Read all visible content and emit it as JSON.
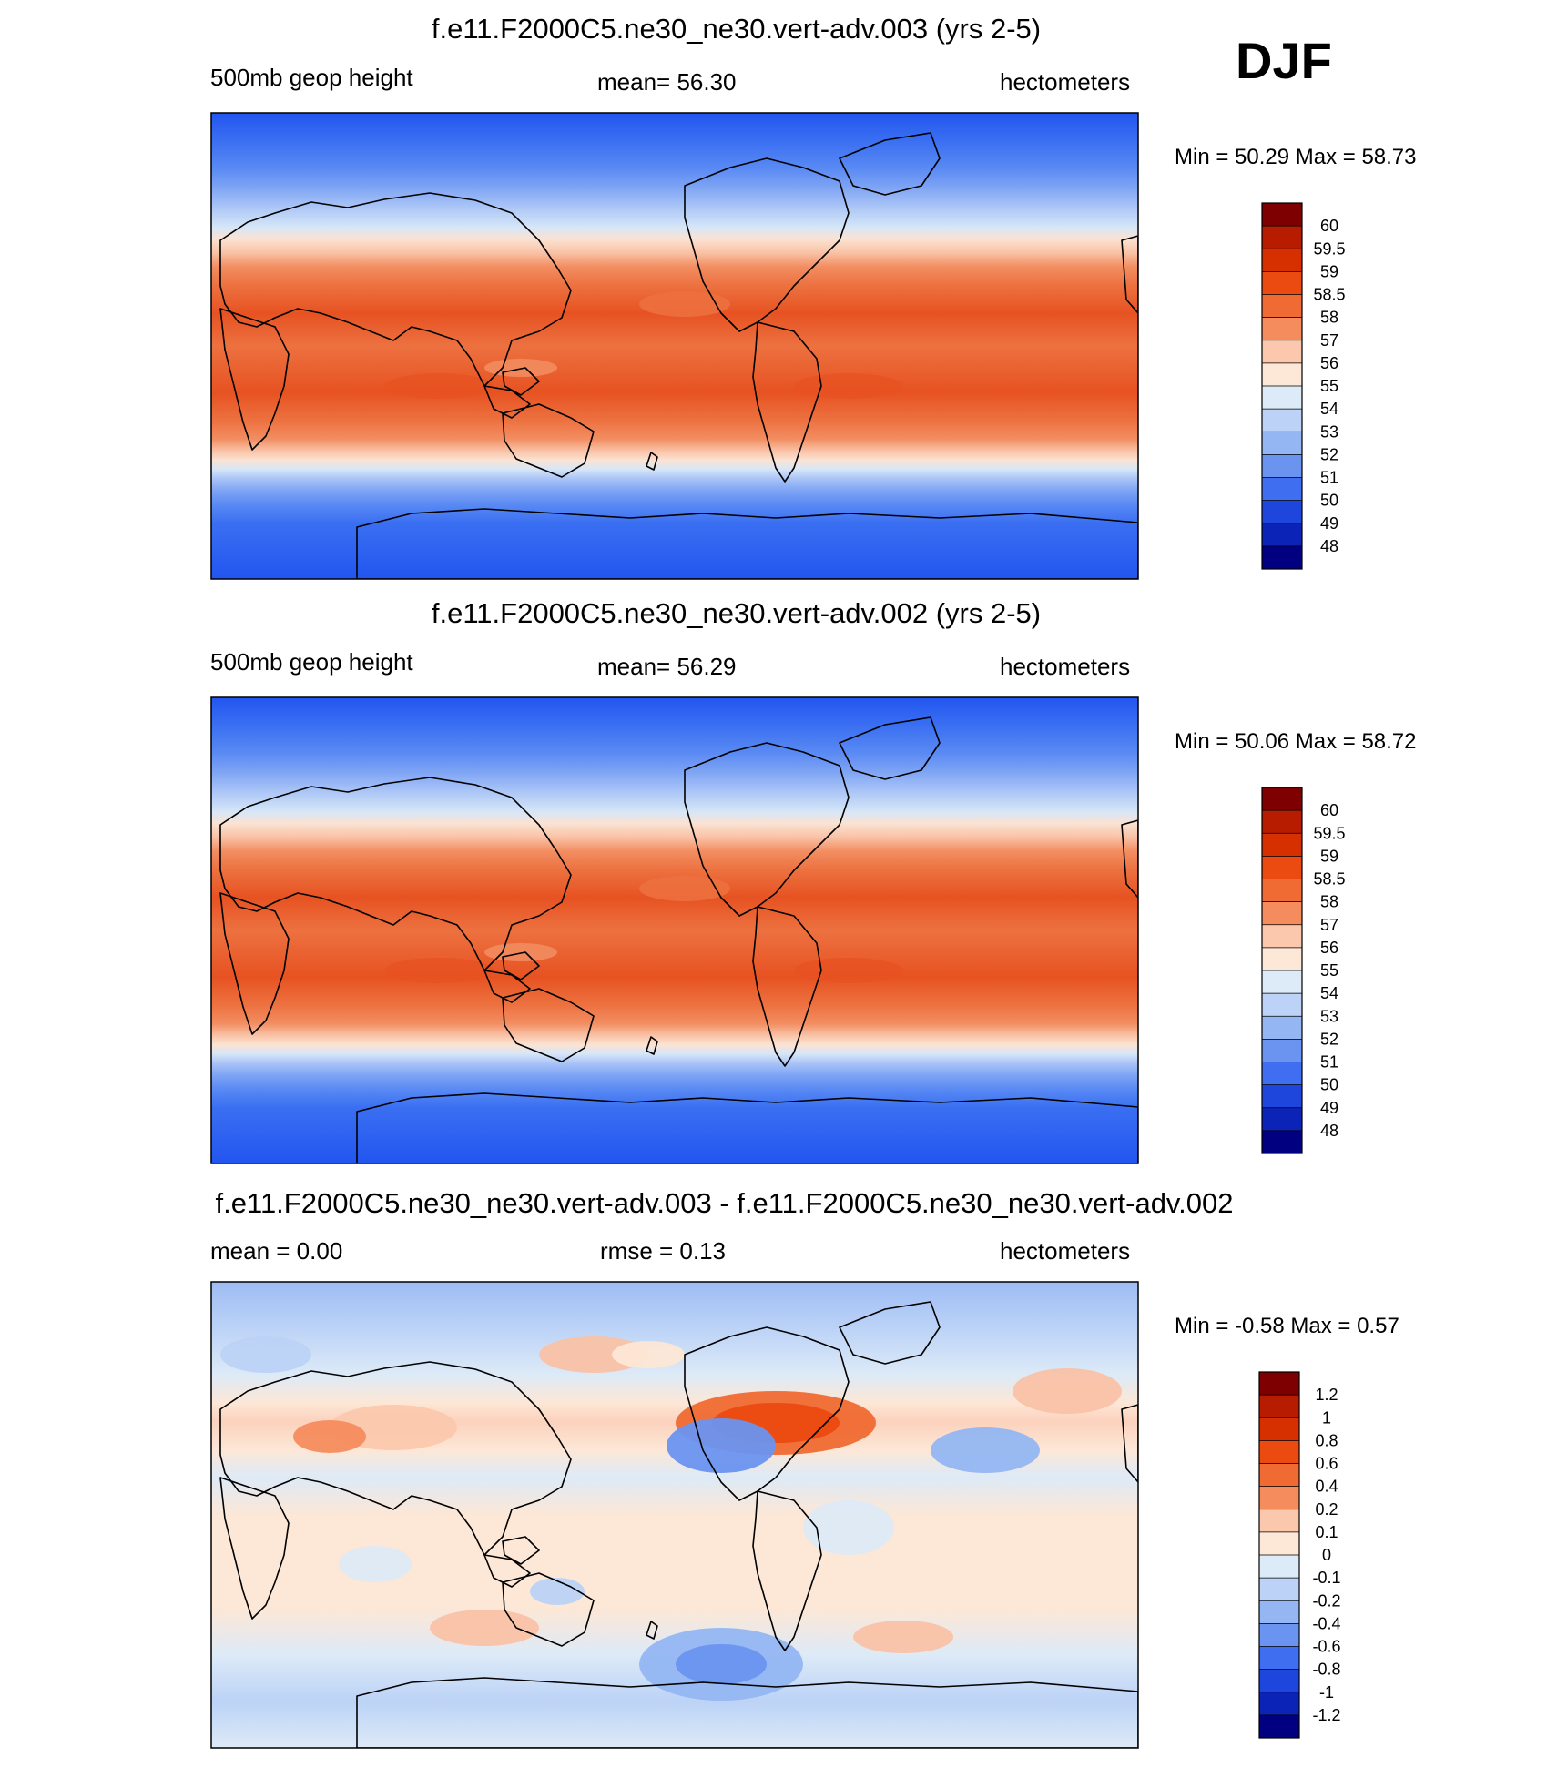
{
  "season": "DJF",
  "chart_data": [
    {
      "type": "heatmap",
      "title": "f.e11.F2000C5.ne30_ne30.vert-adv.003 (yrs 2-5)",
      "left_label": "500mb geop height",
      "center_label": "mean=  56.30",
      "right_label": "hectometers",
      "minmax": "Min =  50.29 Max =  58.73",
      "colorbar_levels": [
        "60",
        "59.5",
        "59",
        "58.5",
        "58",
        "57",
        "56",
        "55",
        "54",
        "53",
        "52",
        "51",
        "50",
        "49",
        "48"
      ],
      "colorbar_colors": [
        "#7f0000",
        "#b71c00",
        "#d73000",
        "#eb4a10",
        "#f06a33",
        "#f58c5e",
        "#fbc8ad",
        "#fde7d6",
        "#ddeaf7",
        "#bcd3f7",
        "#94b6f2",
        "#6a94f0",
        "#3f6ff0",
        "#1e46dd",
        "#0c23b8",
        "#000080"
      ],
      "lat_profile": [
        [
          "#2255ef",
          0.0
        ],
        [
          "#3a6ff2",
          0.06
        ],
        [
          "#5a8af3",
          0.12
        ],
        [
          "#7ea4f4",
          0.16
        ],
        [
          "#a9c4f6",
          0.2
        ],
        [
          "#d6e6f8",
          0.245
        ],
        [
          "#fbe3d3",
          0.27
        ],
        [
          "#f9c2a6",
          0.3
        ],
        [
          "#f28e62",
          0.33
        ],
        [
          "#ed7140",
          0.37
        ],
        [
          "#e75222",
          0.43
        ],
        [
          "#ed7140",
          0.5
        ],
        [
          "#e75222",
          0.6
        ],
        [
          "#ed7140",
          0.66
        ],
        [
          "#f28e62",
          0.7
        ],
        [
          "#f9c2a6",
          0.725
        ],
        [
          "#fbe3d3",
          0.745
        ],
        [
          "#d6e6f8",
          0.765
        ],
        [
          "#a9c4f6",
          0.785
        ],
        [
          "#7ea4f4",
          0.81
        ],
        [
          "#5a8af3",
          0.84
        ],
        [
          "#3a6ff2",
          0.88
        ],
        [
          "#2255ef",
          1.0
        ]
      ]
    },
    {
      "type": "heatmap",
      "title": "f.e11.F2000C5.ne30_ne30.vert-adv.002 (yrs 2-5)",
      "left_label": "500mb geop height",
      "center_label": "mean=  56.29",
      "right_label": "hectometers",
      "minmax": "Min =  50.06 Max =  58.72",
      "colorbar_levels": [
        "60",
        "59.5",
        "59",
        "58.5",
        "58",
        "57",
        "56",
        "55",
        "54",
        "53",
        "52",
        "51",
        "50",
        "49",
        "48"
      ],
      "colorbar_colors": [
        "#7f0000",
        "#b71c00",
        "#d73000",
        "#eb4a10",
        "#f06a33",
        "#f58c5e",
        "#fbc8ad",
        "#fde7d6",
        "#ddeaf7",
        "#bcd3f7",
        "#94b6f2",
        "#6a94f0",
        "#3f6ff0",
        "#1e46dd",
        "#0c23b8",
        "#000080"
      ],
      "lat_profile": [
        [
          "#2255ef",
          0.0
        ],
        [
          "#3a6ff2",
          0.06
        ],
        [
          "#5a8af3",
          0.12
        ],
        [
          "#7ea4f4",
          0.16
        ],
        [
          "#a9c4f6",
          0.2
        ],
        [
          "#d6e6f8",
          0.245
        ],
        [
          "#fbe3d3",
          0.27
        ],
        [
          "#f9c2a6",
          0.3
        ],
        [
          "#f28e62",
          0.33
        ],
        [
          "#ed7140",
          0.37
        ],
        [
          "#e75222",
          0.43
        ],
        [
          "#ed7140",
          0.5
        ],
        [
          "#e75222",
          0.6
        ],
        [
          "#ed7140",
          0.66
        ],
        [
          "#f28e62",
          0.7
        ],
        [
          "#f9c2a6",
          0.725
        ],
        [
          "#fbe3d3",
          0.745
        ],
        [
          "#d6e6f8",
          0.765
        ],
        [
          "#a9c4f6",
          0.785
        ],
        [
          "#7ea4f4",
          0.81
        ],
        [
          "#5a8af3",
          0.84
        ],
        [
          "#3a6ff2",
          0.88
        ],
        [
          "#2255ef",
          1.0
        ]
      ]
    },
    {
      "type": "heatmap",
      "title": "f.e11.F2000C5.ne30_ne30.vert-adv.003 - f.e11.F2000C5.ne30_ne30.vert-adv.002",
      "left_label": "mean =   0.00",
      "center_label": "rmse =   0.13",
      "right_label": "hectometers",
      "minmax": "Min =  -0.58 Max =   0.57",
      "colorbar_levels": [
        "1.2",
        "1",
        "0.8",
        "0.6",
        "0.4",
        "0.2",
        "0.1",
        "0",
        "-0.1",
        "-0.2",
        "-0.4",
        "-0.6",
        "-0.8",
        "-1",
        "-1.2"
      ],
      "colorbar_colors": [
        "#7f0000",
        "#b71c00",
        "#d73000",
        "#eb4a10",
        "#f06a33",
        "#f58c5e",
        "#fbc8ad",
        "#fde7d6",
        "#ddeaf7",
        "#bcd3f7",
        "#94b6f2",
        "#6a94f0",
        "#3f6ff0",
        "#1e46dd",
        "#0c23b8",
        "#000080"
      ],
      "lat_profile": [
        [
          "#9dbcf4",
          0.0
        ],
        [
          "#bcd3f7",
          0.1
        ],
        [
          "#ddeaf7",
          0.2
        ],
        [
          "#fde7d6",
          0.26
        ],
        [
          "#fbd2bd",
          0.3
        ],
        [
          "#fde7d6",
          0.36
        ],
        [
          "#ddeaf7",
          0.42
        ],
        [
          "#fde7d6",
          0.5
        ],
        [
          "#fde7d6",
          0.7
        ],
        [
          "#ddeaf7",
          0.8
        ],
        [
          "#bcd3f7",
          0.9
        ],
        [
          "#ddeaf7",
          1.0
        ]
      ]
    }
  ]
}
